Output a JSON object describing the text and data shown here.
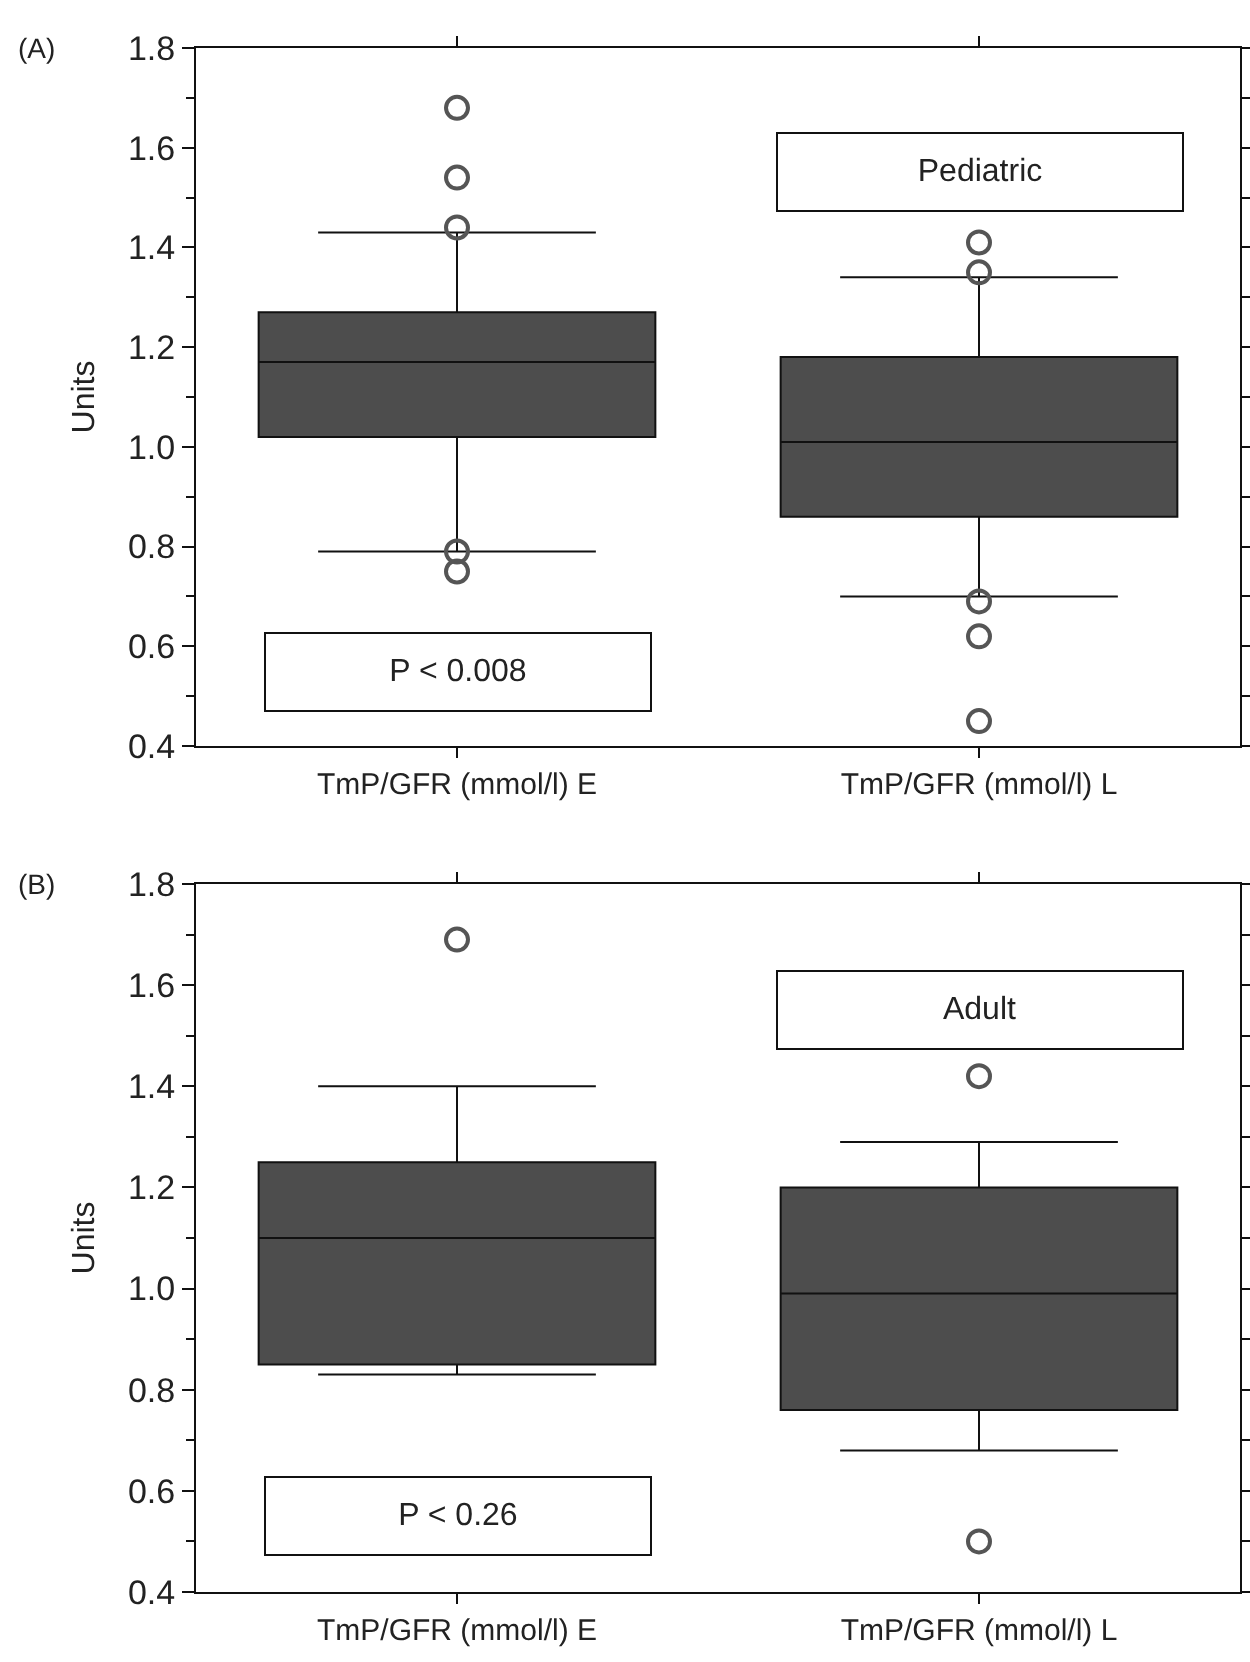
{
  "chart_data": [
    {
      "type": "box",
      "ylabel": "Units",
      "categories": [
        "TmP/GFR (mmol/l) E",
        "TmP/GFR (mmol/l) L"
      ],
      "annotations": [
        "(A)",
        "P < 0.008",
        "Pediatric"
      ],
      "ylim": [
        0.4,
        1.8
      ],
      "yticks": [
        0.4,
        0.6,
        0.8,
        {
          "value": 1.0,
          "label": "1.0"
        },
        1.2,
        1.4,
        1.6,
        1.8
      ],
      "grid": false,
      "legend": false,
      "series": [
        {
          "color": "#4d4d4d",
          "boxes": [
            {
              "low": 0.79,
              "q1": 1.02,
              "median": 1.17,
              "q3": 1.27,
              "high": 1.43,
              "outliers": [
                1.68,
                1.54,
                1.44,
                0.79,
                0.75
              ]
            },
            {
              "low": 0.7,
              "q1": 0.86,
              "median": 1.01,
              "q3": 1.18,
              "high": 1.34,
              "outliers": [
                1.41,
                1.35,
                0.69,
                0.62,
                0.45
              ]
            }
          ]
        }
      ]
    },
    {
      "type": "box",
      "ylabel": "Units",
      "categories": [
        "TmP/GFR (mmol/l) E",
        "TmP/GFR (mmol/l) L"
      ],
      "annotations": [
        "(B)",
        "P < 0.26",
        "Adult"
      ],
      "ylim": [
        0.4,
        1.8
      ],
      "yticks": [
        0.4,
        0.6,
        0.8,
        {
          "value": 1.0,
          "label": "1.0"
        },
        1.2,
        1.4,
        1.6,
        1.8
      ],
      "grid": false,
      "legend": false,
      "series": [
        {
          "color": "#4d4d4d",
          "boxes": [
            {
              "low": 0.83,
              "q1": 0.85,
              "median": 1.1,
              "q3": 1.25,
              "high": 1.4,
              "outliers": [
                1.69
              ]
            },
            {
              "low": 0.68,
              "q1": 0.76,
              "median": 0.99,
              "q3": 1.2,
              "high": 1.29,
              "outliers": [
                1.42,
                0.5
              ]
            }
          ]
        }
      ]
    }
  ]
}
